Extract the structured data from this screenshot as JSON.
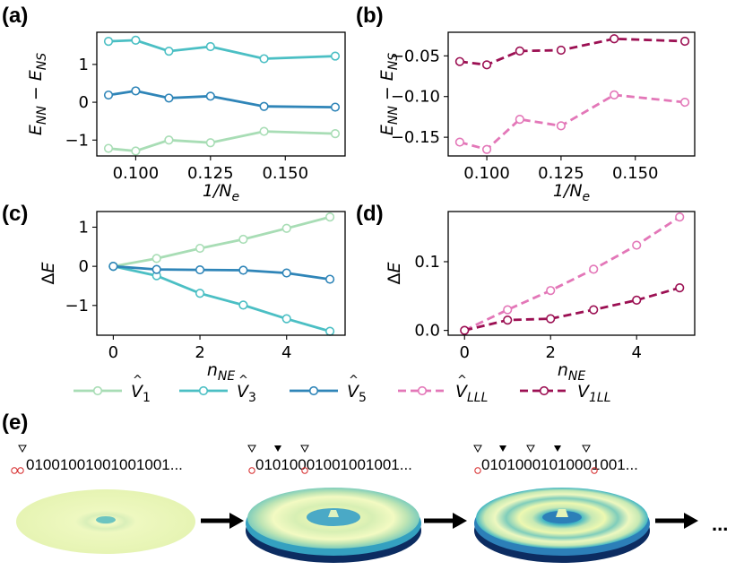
{
  "panel_labels": {
    "a": "(a)",
    "b": "(b)",
    "c": "(c)",
    "d": "(d)",
    "e": "(e)"
  },
  "colors": {
    "V1": "#a8ddb5",
    "V3": "#4bbfc4",
    "V5": "#2f85b8",
    "VLLL": "#e377b8",
    "V1LL": "#9c1053"
  },
  "legend": [
    {
      "key": "V1",
      "symbol": "V",
      "sub": "1",
      "style": "solid"
    },
    {
      "key": "V3",
      "symbol": "V",
      "sub": "3",
      "style": "solid"
    },
    {
      "key": "V5",
      "symbol": "V",
      "sub": "5",
      "style": "solid"
    },
    {
      "key": "VLLL",
      "symbol": "V",
      "sub": "LLL",
      "style": "dashed"
    },
    {
      "key": "V1LL",
      "symbol": "V",
      "sub": "1LL",
      "style": "dashed",
      "no_hat": true
    }
  ],
  "chart_data": [
    {
      "panel": "a",
      "type": "line",
      "xlabel": "1/N_e",
      "ylabel": "E_NN - E_NS",
      "xlim": [
        0.087,
        0.17
      ],
      "ylim": [
        -1.42,
        1.85
      ],
      "xticks": [
        0.1,
        0.125,
        0.15
      ],
      "xticklabels": [
        "0.100",
        "0.125",
        "0.150"
      ],
      "yticks": [
        -1,
        0,
        1
      ],
      "yticklabels": [
        "−1",
        "0",
        "1"
      ],
      "x": [
        0.0909,
        0.1,
        0.1111,
        0.125,
        0.1429,
        0.1667
      ],
      "series": [
        {
          "name": "V1",
          "values": [
            -1.22,
            -1.29,
            -1.0,
            -1.07,
            -0.77,
            -0.83
          ]
        },
        {
          "name": "V3",
          "values": [
            1.61,
            1.64,
            1.35,
            1.47,
            1.15,
            1.22
          ]
        },
        {
          "name": "V5",
          "values": [
            0.19,
            0.3,
            0.11,
            0.16,
            -0.11,
            -0.13
          ]
        }
      ]
    },
    {
      "panel": "b",
      "type": "line",
      "xlabel": "1/N_e",
      "ylabel": "E_NN - E_NS",
      "xlim": [
        0.087,
        0.17
      ],
      "ylim": [
        -0.173,
        -0.021
      ],
      "xticks": [
        0.1,
        0.125,
        0.15
      ],
      "xticklabels": [
        "0.100",
        "0.125",
        "0.150"
      ],
      "yticks": [
        -0.05,
        -0.1,
        -0.15
      ],
      "yticklabels": [
        "−0.05",
        "−0.10",
        "−0.15"
      ],
      "x": [
        0.0909,
        0.1,
        0.1111,
        0.125,
        0.1429,
        0.1667
      ],
      "series": [
        {
          "name": "V1LL",
          "values": [
            -0.057,
            -0.061,
            -0.044,
            -0.043,
            -0.029,
            -0.032
          ]
        },
        {
          "name": "VLLL",
          "values": [
            -0.156,
            -0.165,
            -0.128,
            -0.136,
            -0.098,
            -0.107
          ]
        }
      ]
    },
    {
      "panel": "c",
      "type": "line",
      "xlabel": "n_NE",
      "ylabel": "ΔE",
      "xlim": [
        -0.38,
        5.35
      ],
      "ylim": [
        -1.76,
        1.4
      ],
      "xticks": [
        0,
        2,
        4
      ],
      "xticklabels": [
        "0",
        "2",
        "4"
      ],
      "yticks": [
        1,
        0,
        -1
      ],
      "yticklabels": [
        "1",
        "0",
        "−1"
      ],
      "x": [
        0,
        1,
        2,
        3,
        4,
        5
      ],
      "series": [
        {
          "name": "V1",
          "values": [
            0.0,
            0.2,
            0.46,
            0.69,
            0.97,
            1.26
          ]
        },
        {
          "name": "V3",
          "values": [
            0.0,
            -0.24,
            -0.69,
            -0.99,
            -1.34,
            -1.66
          ]
        },
        {
          "name": "V5",
          "values": [
            0.0,
            -0.08,
            -0.09,
            -0.1,
            -0.17,
            -0.33
          ]
        }
      ]
    },
    {
      "panel": "d",
      "type": "line",
      "xlabel": "n_NE",
      "ylabel": "ΔE",
      "xlim": [
        -0.38,
        5.35
      ],
      "ylim": [
        -0.007,
        0.173
      ],
      "xticks": [
        0,
        2,
        4
      ],
      "xticklabels": [
        "0",
        "2",
        "4"
      ],
      "yticks": [
        0.1,
        0.0
      ],
      "yticklabels": [
        "0.1",
        "0.0"
      ],
      "x": [
        0,
        1,
        2,
        3,
        4,
        5
      ],
      "series": [
        {
          "name": "VLLL",
          "values": [
            0.0,
            0.03,
            0.058,
            0.089,
            0.124,
            0.165
          ]
        },
        {
          "name": "V1LL",
          "values": [
            0.0,
            0.015,
            0.017,
            0.03,
            0.044,
            0.062
          ]
        }
      ]
    }
  ],
  "panel_e": {
    "sequences": [
      "01001001001001001...",
      "0101000 1001001001...",
      "0101000101000 1001..."
    ],
    "sequence_text": [
      "01001001001001001...",
      "01010001001001001...",
      "01010001010001001..."
    ],
    "ellipsis": "..."
  }
}
